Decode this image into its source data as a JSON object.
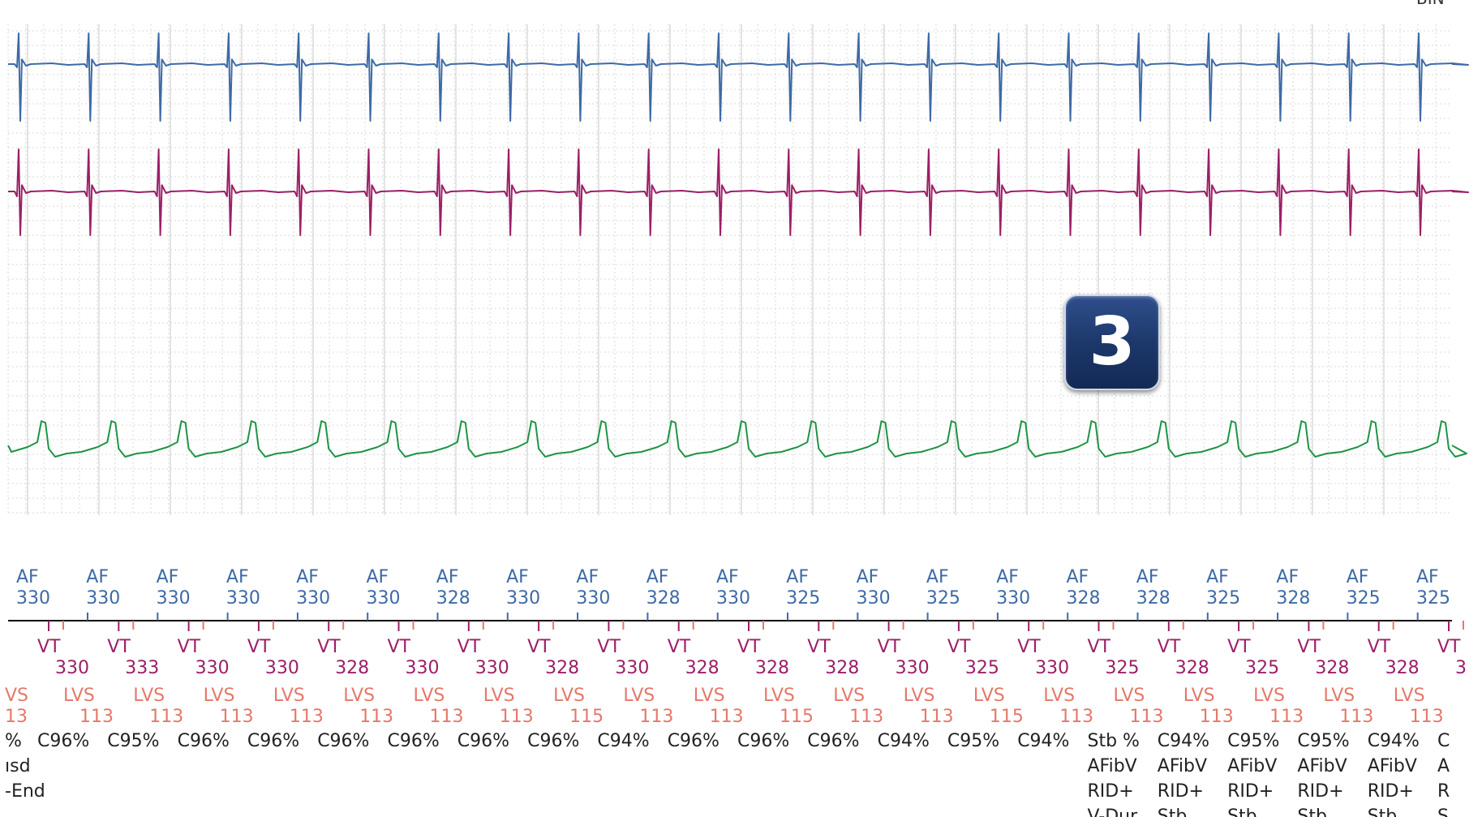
{
  "corner_label": "BIN",
  "badge": {
    "label": "3"
  },
  "colors": {
    "grid": "#d9d9d9",
    "atrial_egm": "#3d6aa6",
    "ventricular_egm": "#9c1f67",
    "shock_egm": "#1e9444",
    "atrial_marker": "#3d6aa6",
    "ventricular_marker": "#9c1f67",
    "lvs_marker": "#e5786a",
    "text": "#222222",
    "axis": "#000000"
  },
  "chart_data": {
    "type": "line",
    "title": "",
    "xlabel": "",
    "ylabel": "",
    "grid": true,
    "series": [
      {
        "key": "atrial",
        "beats": 21
      },
      {
        "key": "ventricular",
        "beats": 21
      },
      {
        "key": "shock",
        "beats": 21
      }
    ],
    "atrial_markers": [
      {
        "label": "AF",
        "value": "330"
      },
      {
        "label": "AF",
        "value": "330"
      },
      {
        "label": "AF",
        "value": "330"
      },
      {
        "label": "AF",
        "value": "330"
      },
      {
        "label": "AF",
        "value": "330"
      },
      {
        "label": "AF",
        "value": "330"
      },
      {
        "label": "AF",
        "value": "328"
      },
      {
        "label": "AF",
        "value": "330"
      },
      {
        "label": "AF",
        "value": "330"
      },
      {
        "label": "AF",
        "value": "328"
      },
      {
        "label": "AF",
        "value": "330"
      },
      {
        "label": "AF",
        "value": "325"
      },
      {
        "label": "AF",
        "value": "330"
      },
      {
        "label": "AF",
        "value": "325"
      },
      {
        "label": "AF",
        "value": "330"
      },
      {
        "label": "AF",
        "value": "328"
      },
      {
        "label": "AF",
        "value": "328"
      },
      {
        "label": "AF",
        "value": "325"
      },
      {
        "label": "AF",
        "value": "328"
      },
      {
        "label": "AF",
        "value": "325"
      },
      {
        "label": "AF",
        "value": "325"
      }
    ],
    "ventricular_markers": [
      {
        "label": "VT",
        "value": "330"
      },
      {
        "label": "VT",
        "value": "333"
      },
      {
        "label": "VT",
        "value": "330"
      },
      {
        "label": "VT",
        "value": "330"
      },
      {
        "label": "VT",
        "value": "328"
      },
      {
        "label": "VT",
        "value": "330"
      },
      {
        "label": "VT",
        "value": "330"
      },
      {
        "label": "VT",
        "value": "328"
      },
      {
        "label": "VT",
        "value": "330"
      },
      {
        "label": "VT",
        "value": "328"
      },
      {
        "label": "VT",
        "value": "328"
      },
      {
        "label": "VT",
        "value": "328"
      },
      {
        "label": "VT",
        "value": "330"
      },
      {
        "label": "VT",
        "value": "325"
      },
      {
        "label": "VT",
        "value": "330"
      },
      {
        "label": "VT",
        "value": "325"
      },
      {
        "label": "VT",
        "value": "328"
      },
      {
        "label": "VT",
        "value": "325"
      },
      {
        "label": "VT",
        "value": "328"
      },
      {
        "label": "VT",
        "value": "328"
      },
      {
        "label": "VT",
        "value": "3"
      }
    ],
    "lvs_markers": [
      {
        "label": "VS",
        "value": "13"
      },
      {
        "label": "LVS",
        "value": "113"
      },
      {
        "label": "LVS",
        "value": "113"
      },
      {
        "label": "LVS",
        "value": "113"
      },
      {
        "label": "LVS",
        "value": "113"
      },
      {
        "label": "LVS",
        "value": "113"
      },
      {
        "label": "LVS",
        "value": "113"
      },
      {
        "label": "LVS",
        "value": "113"
      },
      {
        "label": "LVS",
        "value": "115"
      },
      {
        "label": "LVS",
        "value": "113"
      },
      {
        "label": "LVS",
        "value": "113"
      },
      {
        "label": "LVS",
        "value": "115"
      },
      {
        "label": "LVS",
        "value": "113"
      },
      {
        "label": "LVS",
        "value": "113"
      },
      {
        "label": "LVS",
        "value": "115"
      },
      {
        "label": "LVS",
        "value": "113"
      },
      {
        "label": "LVS",
        "value": "113"
      },
      {
        "label": "LVS",
        "value": "113"
      },
      {
        "label": "LVS",
        "value": "113"
      },
      {
        "label": "LVS",
        "value": "113"
      },
      {
        "label": "LVS",
        "value": "113"
      }
    ],
    "classification": [
      {
        "lines": [
          "%",
          "ısd",
          "-End"
        ]
      },
      {
        "lines": [
          "C96%"
        ]
      },
      {
        "lines": [
          "C95%"
        ]
      },
      {
        "lines": [
          "C96%"
        ]
      },
      {
        "lines": [
          "C96%"
        ]
      },
      {
        "lines": [
          "C96%"
        ]
      },
      {
        "lines": [
          "C96%"
        ]
      },
      {
        "lines": [
          "C96%"
        ]
      },
      {
        "lines": [
          "C96%"
        ]
      },
      {
        "lines": [
          "C94%"
        ]
      },
      {
        "lines": [
          "C96%"
        ]
      },
      {
        "lines": [
          "C96%"
        ]
      },
      {
        "lines": [
          "C96%"
        ]
      },
      {
        "lines": [
          "C94%"
        ]
      },
      {
        "lines": [
          "C95%"
        ]
      },
      {
        "lines": [
          "C94%"
        ]
      },
      {
        "lines": [
          "Stb %",
          "AFibV",
          "RID+",
          "V-Dur"
        ]
      },
      {
        "lines": [
          "C94%",
          "AFibV",
          "RID+",
          "Stb"
        ]
      },
      {
        "lines": [
          "C95%",
          "AFibV",
          "RID+",
          "Stb"
        ]
      },
      {
        "lines": [
          "C95%",
          "AFibV",
          "RID+",
          "Stb"
        ]
      },
      {
        "lines": [
          "C94%",
          "AFibV",
          "RID+",
          "Stb"
        ]
      },
      {
        "lines": [
          "C",
          "A",
          "R",
          "S"
        ]
      }
    ]
  }
}
